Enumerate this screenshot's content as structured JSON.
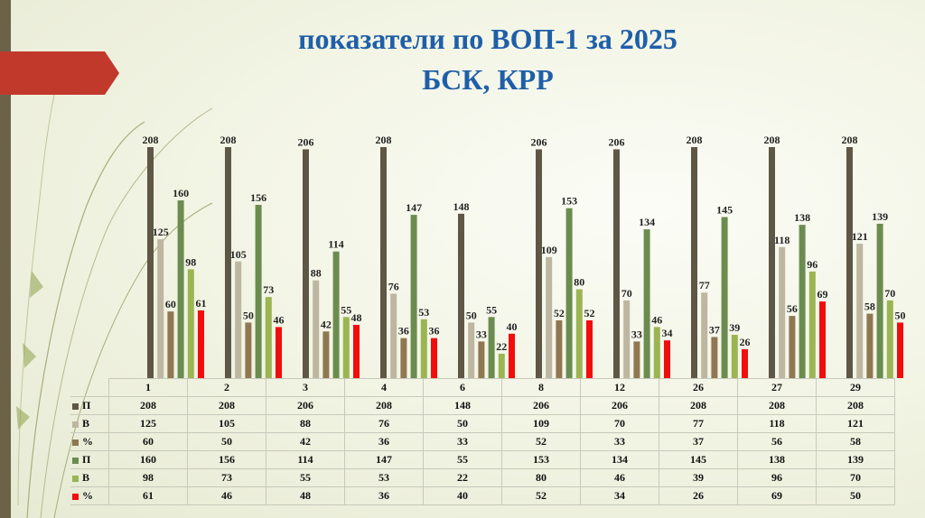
{
  "title": {
    "line1": "показатели по ВОП-1 за 2025",
    "line2": "БСК, КРР"
  },
  "chart_data": {
    "type": "bar",
    "categories": [
      "1",
      "2",
      "3",
      "4",
      "6",
      "8",
      "12",
      "26",
      "27",
      "29"
    ],
    "series": [
      {
        "name": "П",
        "color": "#5e5745",
        "values": [
          208,
          208,
          206,
          208,
          148,
          206,
          206,
          208,
          208,
          208
        ]
      },
      {
        "name": "В",
        "color": "#bdb6a0",
        "values": [
          125,
          105,
          88,
          76,
          50,
          109,
          70,
          77,
          118,
          121
        ]
      },
      {
        "name": "%",
        "color": "#8f7752",
        "values": [
          60,
          50,
          42,
          36,
          33,
          52,
          33,
          37,
          56,
          58
        ]
      },
      {
        "name": "П",
        "color": "#6b8c4f",
        "values": [
          160,
          156,
          114,
          147,
          55,
          153,
          134,
          145,
          138,
          139
        ]
      },
      {
        "name": "В",
        "color": "#9ab552",
        "values": [
          98,
          73,
          55,
          53,
          22,
          80,
          46,
          39,
          96,
          70
        ]
      },
      {
        "name": "%",
        "color": "#f20d0d",
        "values": [
          61,
          46,
          48,
          36,
          40,
          52,
          34,
          26,
          69,
          50
        ]
      }
    ],
    "ylim": [
      0,
      208
    ],
    "legend": "data-table-below",
    "data_labels": true,
    "grid": false
  }
}
